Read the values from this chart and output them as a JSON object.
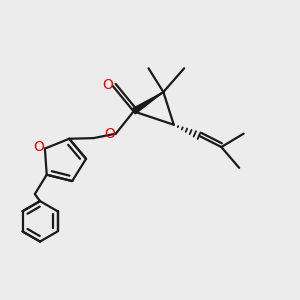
{
  "bg_color": "#ececec",
  "bond_color": "#1a1a1a",
  "oxygen_color": "#ee0000",
  "line_width": 1.6,
  "dbo": 0.012,
  "figsize": [
    3.0,
    3.0
  ],
  "dpi": 100,
  "xlim": [
    0,
    1
  ],
  "ylim": [
    0,
    1
  ]
}
